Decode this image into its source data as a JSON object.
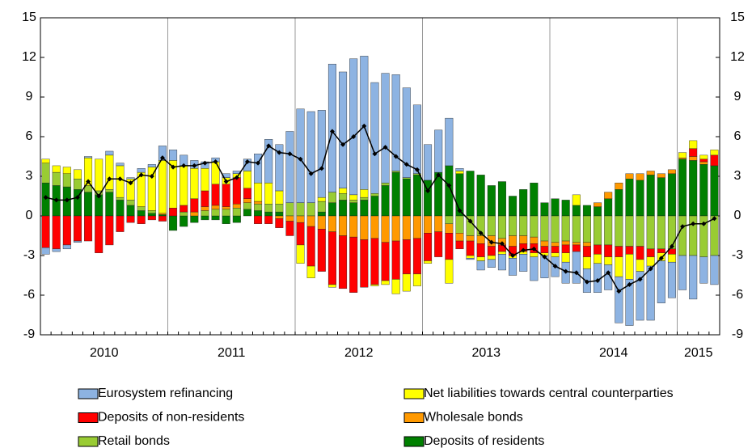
{
  "chart_data": {
    "type": "bar",
    "stacked": true,
    "categories": [
      null,
      null,
      null,
      null,
      null,
      null,
      "2010",
      null,
      null,
      null,
      null,
      null,
      null,
      null,
      null,
      null,
      null,
      null,
      "2011",
      null,
      null,
      null,
      null,
      null,
      null,
      null,
      null,
      null,
      null,
      null,
      "2012",
      null,
      null,
      null,
      null,
      null,
      null,
      null,
      null,
      null,
      null,
      null,
      "2013",
      null,
      null,
      null,
      null,
      null,
      null,
      null,
      null,
      null,
      null,
      null,
      "2014",
      null,
      null,
      null,
      null,
      null,
      null,
      null,
      "2015",
      null
    ],
    "ylim": [
      -9,
      15
    ],
    "yticks": [
      -9,
      -6,
      -3,
      0,
      3,
      6,
      9,
      12,
      15
    ],
    "y2lim": [
      -9,
      15
    ],
    "y2ticks": [
      -9,
      -6,
      -3,
      0,
      3,
      6,
      9,
      12,
      15
    ],
    "grid": false,
    "series": [
      {
        "name": "Eurosystem refinancing",
        "color": "#8db3e2",
        "values": [
          -0.5,
          -0.2,
          -0.3,
          -0.1,
          0.1,
          0,
          0.3,
          0.2,
          0.1,
          0.3,
          0.2,
          1.1,
          0.8,
          0.8,
          0.6,
          0.5,
          0.3,
          0.3,
          0.2,
          0.9,
          2.2,
          3.3,
          3.5,
          5.4,
          7.1,
          6.9,
          6.6,
          9.7,
          8.8,
          10.3,
          10.1,
          8.4,
          8.3,
          7.3,
          6.8,
          5.2,
          2.7,
          3.2,
          3.6,
          0.2,
          -0.1,
          -0.7,
          -0.6,
          -1.2,
          -1.3,
          -1.3,
          -1.8,
          -1.7,
          -1.5,
          -1.6,
          -2.4,
          -1.8,
          -2.2,
          -1.9,
          -3.5,
          -3.5,
          -3.7,
          -4.1,
          -3.2,
          -2.7,
          -2.6,
          -3.3,
          -2.0,
          -2.2
        ]
      },
      {
        "name": "Net liabilities towards central counterparties",
        "color": "#ffff00",
        "values": [
          0.3,
          0.5,
          0.5,
          0.7,
          2.1,
          2.4,
          2.6,
          2.4,
          1.6,
          2.6,
          3.3,
          4.0,
          3.6,
          3.0,
          2.3,
          1.7,
          1.7,
          0.5,
          0.3,
          1.3,
          1.4,
          1.6,
          1.0,
          0,
          -1.4,
          -0.9,
          0.3,
          -0.2,
          0.4,
          0.4,
          0.6,
          -0.1,
          -0.3,
          -1.1,
          -1.3,
          -0.9,
          -0.2,
          0,
          -1.8,
          0.2,
          -0.2,
          -0.3,
          -0.3,
          -0.2,
          -0.2,
          -0.2,
          -0.3,
          -0.2,
          -0.3,
          -0.7,
          0.8,
          -0.9,
          -0.7,
          -0.6,
          -1.5,
          -1.9,
          -0.9,
          -0.7,
          -0.6,
          -0.6,
          0.4,
          0.6,
          0.3,
          0.4
        ]
      },
      {
        "name": "Deposits of non-residents",
        "color": "#ff0000",
        "values": [
          -2.4,
          -2.5,
          -2.2,
          -1.9,
          -1.9,
          -2.8,
          -2.2,
          -1.2,
          -0.5,
          -0.6,
          -0.3,
          -0.4,
          0.6,
          0.5,
          1.0,
          1.2,
          1.6,
          1.7,
          2.0,
          0.8,
          -0.6,
          -0.6,
          -0.7,
          -1.1,
          -1.7,
          -3.0,
          -3.2,
          -4.0,
          -4.0,
          -4.2,
          -3.6,
          -3.5,
          -2.9,
          -2.9,
          -2.6,
          -2.7,
          -2.1,
          -1.9,
          -2.0,
          -0.6,
          -1.1,
          -1.0,
          -0.7,
          -0.5,
          -0.7,
          -0.6,
          -0.7,
          -0.5,
          -0.5,
          -0.6,
          -0.5,
          -0.8,
          -0.7,
          -0.9,
          -0.8,
          -0.6,
          -1.0,
          -0.6,
          -0.3,
          -0.4,
          0,
          0.6,
          0.2,
          0.8
        ]
      },
      {
        "name": "Wholesale bonds",
        "color": "#ff9900",
        "values": [
          0,
          0,
          0,
          0,
          0,
          0,
          0,
          0,
          0,
          0,
          0,
          0.1,
          0,
          0,
          0.3,
          0.3,
          0.3,
          0.2,
          0.3,
          0.3,
          0.2,
          0,
          -0.2,
          -0.4,
          -0.5,
          -0.8,
          -1.0,
          -1.2,
          -1.5,
          -1.6,
          -1.8,
          -1.7,
          -2.0,
          -1.9,
          -1.8,
          -1.7,
          -1.3,
          -1.2,
          -0.7,
          -0.6,
          -0.4,
          -0.6,
          -0.8,
          -0.5,
          -0.8,
          -0.6,
          -0.5,
          -0.4,
          -0.3,
          -0.3,
          -0.2,
          -0.3,
          0.3,
          0.5,
          0.5,
          0.4,
          0.5,
          0.3,
          0.3,
          0.3,
          0.1,
          0.3,
          0.2,
          0
        ]
      },
      {
        "name": "Retail bonds",
        "color": "#99cc33",
        "values": [
          1.5,
          1.0,
          1.0,
          0.8,
          0.5,
          0.3,
          0.2,
          0.2,
          0.4,
          0.3,
          0.2,
          0,
          0,
          0.3,
          0,
          0.4,
          0.5,
          0.5,
          0.6,
          0.5,
          0.5,
          0.6,
          0.6,
          1.0,
          1.0,
          1.0,
          0.8,
          0.8,
          0.5,
          0.2,
          0.2,
          0.2,
          0.2,
          0.1,
          0.1,
          0.1,
          0,
          0,
          -0.6,
          -1.3,
          -1.5,
          -1.5,
          -1.5,
          -1.7,
          -1.5,
          -1.5,
          -1.6,
          -1.9,
          -2.0,
          -1.9,
          -2.0,
          -2.0,
          -2.2,
          -2.2,
          -2.3,
          -2.3,
          -2.3,
          -2.5,
          -2.5,
          -2.5,
          -3.0,
          -3.0,
          -3.1,
          -3.0
        ]
      },
      {
        "name": "Deposits of residents",
        "color": "#008000",
        "values": [
          2.5,
          2.3,
          2.2,
          2.0,
          1.8,
          1.6,
          1.8,
          1.2,
          0.8,
          0.4,
          0.2,
          0.1,
          -1.1,
          -0.8,
          -0.5,
          -0.3,
          -0.3,
          -0.6,
          -0.5,
          0.5,
          0.4,
          0.3,
          0.3,
          0,
          0,
          0,
          0.3,
          1.0,
          1.2,
          1.0,
          1.2,
          1.5,
          2.3,
          3.3,
          2.8,
          3.1,
          2.7,
          3.3,
          3.8,
          3.2,
          3.4,
          3.1,
          2.3,
          2.6,
          1.5,
          2.0,
          2.5,
          1.0,
          1.3,
          1.2,
          0.8,
          0.8,
          0.7,
          1.3,
          2.0,
          2.8,
          2.7,
          3.1,
          2.9,
          3.2,
          4.3,
          4.2,
          3.9,
          3.8
        ]
      },
      {
        "type": "line",
        "color": "#000000",
        "values": [
          1.4,
          1.2,
          1.2,
          1.4,
          2.6,
          1.5,
          2.8,
          2.8,
          2.5,
          3.1,
          3.0,
          4.4,
          3.7,
          3.8,
          3.8,
          4.0,
          4.1,
          2.6,
          2.9,
          4.1,
          4.0,
          5.3,
          4.8,
          4.7,
          4.3,
          3.2,
          3.6,
          6.4,
          5.4,
          6.0,
          6.8,
          4.7,
          5.2,
          4.5,
          3.9,
          3.5,
          1.9,
          3.1,
          2.3,
          0.4,
          -0.4,
          -1.3,
          -2.0,
          -2.1,
          -3.0,
          -2.6,
          -2.5,
          -3.1,
          -3.8,
          -4.2,
          -4.3,
          -5.0,
          -4.9,
          -4.3,
          -5.7,
          -5.2,
          -4.8,
          -4.0,
          -3.2,
          -2.3,
          -0.8,
          -0.6,
          -0.6,
          -0.2
        ]
      }
    ]
  }
}
